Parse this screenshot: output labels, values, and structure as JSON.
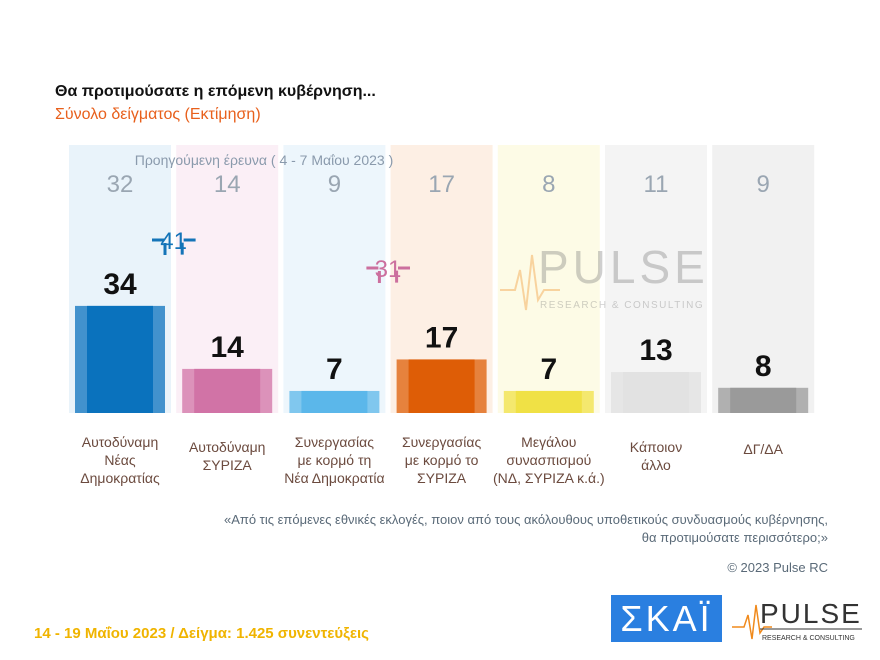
{
  "title": "Θα προτιμούσατε η επόμενη κυβέρνηση...",
  "subtitle": "Σύνολο δείγματος  (Εκτίμηση)",
  "chart_data": {
    "type": "bar",
    "categories": [
      [
        "Αυτοδύναμη",
        "Νέας",
        "Δημοκρατίας"
      ],
      [
        "Αυτοδύναμη",
        "ΣΥΡΙΖΑ"
      ],
      [
        "Συνεργασίας",
        "με κορμό τη",
        "Νέα Δημοκρατία"
      ],
      [
        "Συνεργασίας",
        "με κορμό το",
        "ΣΥΡΙΖΑ"
      ],
      [
        "Μεγάλου",
        "συνασπισμού",
        "(ΝΔ, ΣΥΡΙΖΑ κ.ά.)"
      ],
      [
        "Κάποιον",
        "άλλο"
      ],
      [
        "ΔΓ/ΔΑ"
      ]
    ],
    "values": [
      34,
      14,
      7,
      17,
      7,
      13,
      8
    ],
    "previous_label": "Προηγούμενη έρευνα  ( 4 - 7 Μαΐου  2023 )",
    "previous_values": [
      32,
      14,
      9,
      17,
      8,
      11,
      9
    ],
    "colors": [
      "#0a72bd",
      "#d173a6",
      "#5bb7ea",
      "#de5d06",
      "#f0e145",
      "#e2e2e2",
      "#9a9a9a"
    ],
    "panel_colors": [
      "#e9f3fa",
      "#fbeff6",
      "#edf6fc",
      "#fdefe4",
      "#fdfbe6",
      "#f4f4f4",
      "#f1f1f1"
    ],
    "brackets": [
      {
        "value": "41",
        "from": 0,
        "to": 1,
        "color": "#1474b8"
      },
      {
        "value": "31",
        "from": 2,
        "to": 3,
        "color": "#cc6f9e"
      }
    ],
    "ylim": [
      0,
      40
    ]
  },
  "watermark": {
    "brand": "PULSE",
    "tagline": "RESEARCH & CONSULTING"
  },
  "question": "«Από τις επόμενες εθνικές εκλογές, ποιον από τους ακόλουθους υποθετικούς συνδυασμούς κυβέρνησης,",
  "question2": "θα προτιμούσατε περισσότερο;»",
  "copyright": "© 2023 Pulse RC",
  "footer": "14 - 19  Μαΐου  2023  /  Δείγμα:  1.425 συνεντεύξεις",
  "logos": {
    "skai": "ΣΚΑΪ",
    "pulse": "PULSE",
    "pulse_tagline": "RESEARCH & CONSULTING"
  }
}
